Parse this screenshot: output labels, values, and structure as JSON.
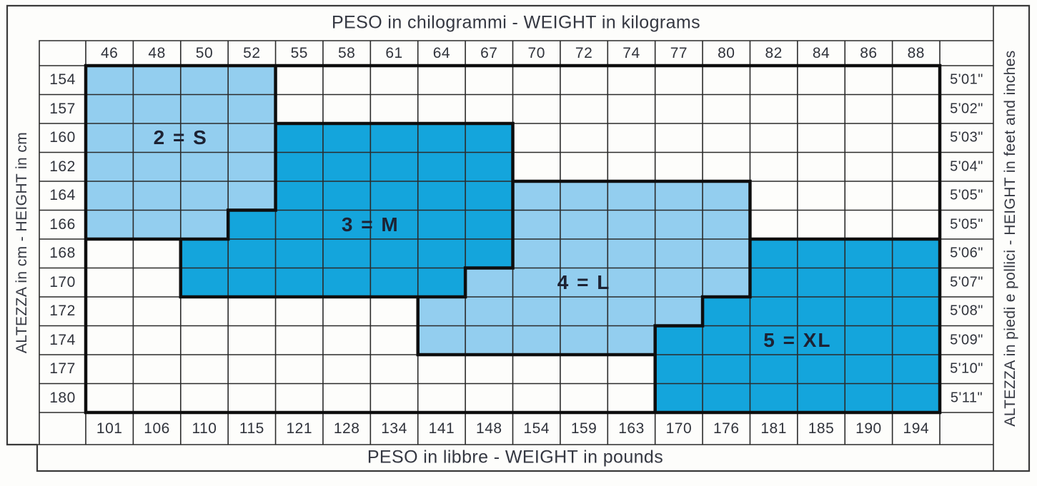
{
  "figure": {
    "top_header": "PESO in chilogrammi -  WEIGHT in kilograms",
    "bottom_header": "PESO in libbre -  WEIGHT in pounds",
    "left_vertical_label": "ALTEZZA in cm   -   HEIGHT in cm",
    "right_vertical_label": "ALTEZZA in piedi e pollici - HEIGHT in feet and inches"
  },
  "colors": {
    "light_region": "#93CEEF",
    "dark_region": "#14A5DC",
    "thin_line": "#2b2b2b",
    "thick_line": "#0e0e0e",
    "outer_border": "#3a3a3a",
    "number_text": "#30333b",
    "header_text": "#343741",
    "size_label_text": "#1d2233",
    "background": "#fdfdfb"
  },
  "chart_data": {
    "type": "heatmap",
    "title": "PESO in chilogrammi - WEIGHT in kilograms",
    "xlabel_top": "PESO in chilogrammi -  WEIGHT in kilograms",
    "xlabel_bottom": "PESO in libbre -  WEIGHT in pounds",
    "ylabel_left": "ALTEZZA in cm - HEIGHT in cm",
    "ylabel_right": "ALTEZZA in piedi e pollici - HEIGHT in feet and inches",
    "columns_weight_kg": [
      46,
      48,
      50,
      52,
      55,
      58,
      61,
      64,
      67,
      70,
      72,
      74,
      77,
      80,
      82,
      84,
      86,
      88
    ],
    "columns_weight_lb": [
      101,
      106,
      110,
      115,
      121,
      128,
      134,
      141,
      148,
      154,
      159,
      163,
      170,
      176,
      181,
      185,
      190,
      194
    ],
    "rows_height_cm": [
      154,
      157,
      160,
      162,
      164,
      166,
      168,
      170,
      172,
      174,
      177,
      180
    ],
    "rows_height_ftin": [
      "5'01\"",
      "5'02\"",
      "5'03\"",
      "5'04\"",
      "5'05\"",
      "5'05\"",
      "5'06\"",
      "5'07\"",
      "5'08\"",
      "5'09\"",
      "5'10\"",
      "5'11\""
    ],
    "sizes": [
      {
        "code": "2",
        "name": "S",
        "label": "2 = S",
        "shade": "light",
        "cells_by_row": [
          {
            "row": 0,
            "from": 0,
            "to": 3
          },
          {
            "row": 1,
            "from": 0,
            "to": 3
          },
          {
            "row": 2,
            "from": 0,
            "to": 3
          },
          {
            "row": 3,
            "from": 0,
            "to": 3
          },
          {
            "row": 4,
            "from": 0,
            "to": 3
          },
          {
            "row": 5,
            "from": 0,
            "to": 2
          }
        ],
        "label_at": {
          "row": 2,
          "from": 1,
          "to": 2
        }
      },
      {
        "code": "3",
        "name": "M",
        "label": "3 = M",
        "shade": "dark",
        "cells_by_row": [
          {
            "row": 2,
            "from": 4,
            "to": 8
          },
          {
            "row": 3,
            "from": 4,
            "to": 8
          },
          {
            "row": 4,
            "from": 4,
            "to": 8
          },
          {
            "row": 5,
            "from": 3,
            "to": 8
          },
          {
            "row": 6,
            "from": 2,
            "to": 8
          },
          {
            "row": 7,
            "from": 2,
            "to": 7
          }
        ],
        "label_at": {
          "row": 5,
          "from": 5,
          "to": 6
        }
      },
      {
        "code": "4",
        "name": "L",
        "label": "4 = L",
        "shade": "light",
        "cells_by_row": [
          {
            "row": 4,
            "from": 9,
            "to": 13
          },
          {
            "row": 5,
            "from": 9,
            "to": 13
          },
          {
            "row": 6,
            "from": 9,
            "to": 13
          },
          {
            "row": 7,
            "from": 8,
            "to": 13
          },
          {
            "row": 8,
            "from": 7,
            "to": 12
          },
          {
            "row": 9,
            "from": 7,
            "to": 11
          }
        ],
        "label_at": {
          "row": 7,
          "from": 10,
          "to": 10
        }
      },
      {
        "code": "5",
        "name": "XL",
        "label": "5 = XL",
        "shade": "dark",
        "cells_by_row": [
          {
            "row": 6,
            "from": 14,
            "to": 17
          },
          {
            "row": 7,
            "from": 14,
            "to": 17
          },
          {
            "row": 8,
            "from": 13,
            "to": 17
          },
          {
            "row": 9,
            "from": 12,
            "to": 17
          },
          {
            "row": 10,
            "from": 12,
            "to": 17
          },
          {
            "row": 11,
            "from": 12,
            "to": 17
          }
        ],
        "label_at": {
          "row": 9,
          "from": 14,
          "to": 15
        }
      }
    ]
  }
}
